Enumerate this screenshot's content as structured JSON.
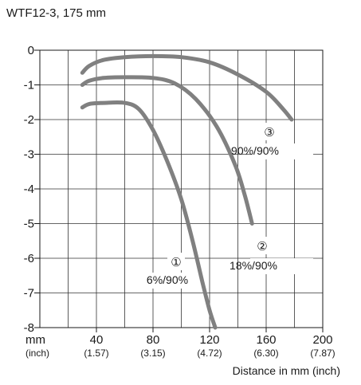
{
  "chart_data": {
    "type": "line",
    "title": "WTF12-3, 175 mm",
    "xlabel": "Distance in mm (inch)",
    "x_unit_label": "mm",
    "x_sub_unit_label": "(inch)",
    "xlim": [
      0,
      200
    ],
    "ylim": [
      -8,
      0
    ],
    "grid": true,
    "x_ticks": [
      {
        "mm": "40",
        "inch": "(1.57)",
        "value": 40
      },
      {
        "mm": "80",
        "inch": "(3.15)",
        "value": 80
      },
      {
        "mm": "120",
        "inch": "(4.72)",
        "value": 120
      },
      {
        "mm": "160",
        "inch": "(6.30)",
        "value": 160
      },
      {
        "mm": "200",
        "inch": "(7.87)",
        "value": 200
      }
    ],
    "y_ticks": [
      "0",
      "-1",
      "-2",
      "-3",
      "-4",
      "-5",
      "-6",
      "-7",
      "-8"
    ],
    "series": [
      {
        "marker": "①",
        "label": "6%/90%",
        "points": [
          [
            30,
            -1.65
          ],
          [
            35,
            -1.55
          ],
          [
            45,
            -1.52
          ],
          [
            60,
            -1.52
          ],
          [
            70,
            -1.7
          ],
          [
            80,
            -2.3
          ],
          [
            90,
            -3.2
          ],
          [
            100,
            -4.3
          ],
          [
            108,
            -5.5
          ],
          [
            115,
            -6.7
          ],
          [
            120,
            -7.5
          ],
          [
            124,
            -8.0
          ]
        ]
      },
      {
        "marker": "②",
        "label": "18%/90%",
        "points": [
          [
            30,
            -1.0
          ],
          [
            35,
            -0.88
          ],
          [
            45,
            -0.8
          ],
          [
            60,
            -0.78
          ],
          [
            80,
            -0.8
          ],
          [
            95,
            -0.95
          ],
          [
            110,
            -1.4
          ],
          [
            125,
            -2.2
          ],
          [
            138,
            -3.3
          ],
          [
            145,
            -4.2
          ],
          [
            150,
            -5.0
          ]
        ]
      },
      {
        "marker": "③",
        "label": "90%/90%",
        "points": [
          [
            30,
            -0.65
          ],
          [
            35,
            -0.45
          ],
          [
            45,
            -0.28
          ],
          [
            60,
            -0.2
          ],
          [
            80,
            -0.17
          ],
          [
            100,
            -0.2
          ],
          [
            120,
            -0.35
          ],
          [
            140,
            -0.7
          ],
          [
            160,
            -1.2
          ],
          [
            172,
            -1.7
          ],
          [
            178,
            -2.0
          ]
        ]
      }
    ]
  }
}
